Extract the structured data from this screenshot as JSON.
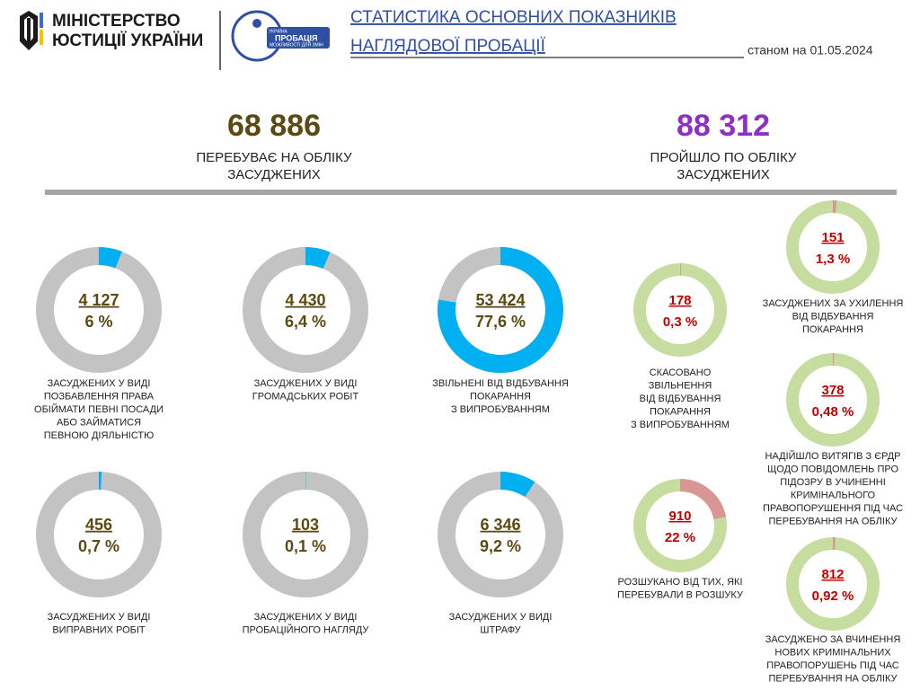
{
  "header": {
    "ministry": [
      "МІНІСТЕРСТВО",
      "ЮСТИЦІЇ УКРАЇНИ"
    ],
    "logo": [
      "УКРАЇНА",
      "ПРОБАЦІЯ",
      "МОЖЛИВОСТІ ДЛЯ ЗМІН"
    ],
    "title": [
      "СТАТИСТИКА ОСНОВНИХ ПОКАЗНИКІВ",
      "НАГЛЯДОВОЇ ПРОБАЦІЇ"
    ],
    "date": "станом на 01.05.2024"
  },
  "summary": [
    {
      "value": "68 886",
      "label": [
        "ПЕРЕБУВАЄ НА ОБЛІКУ",
        "ЗАСУДЖЕНИХ"
      ],
      "color": "#5c4a12"
    },
    {
      "value": "88 312",
      "label": [
        "ПРОЙШЛО ПО ОБЛІКУ",
        "ЗАСУДЖЕНИХ"
      ],
      "color": "#8e2fc8"
    }
  ],
  "donuts": [
    {
      "count": "4 127",
      "percent": 6,
      "percent_label": "6 %",
      "caption": [
        "ЗАСУДЖЕНИХ У ВИДІ",
        "ПОЗБАВЛЕННЯ ПРАВА",
        "ОБІЙМАТИ ПЕВНІ ПОСАДИ",
        "АБО ЗАЙМАТИСЯ",
        "ПЕВНОЮ ДІЯЛЬНІСТЮ"
      ]
    },
    {
      "count": "4 430",
      "percent": 6.4,
      "percent_label": "6,4 %",
      "caption": [
        "ЗАСУДЖЕНИХ У ВИДІ",
        "ГРОМАДСЬКИХ РОБІТ"
      ]
    },
    {
      "count": "53 424",
      "percent": 77.6,
      "percent_label": "77,6 %",
      "caption": [
        "ЗВІЛЬНЕНІ ВІД ВІДБУВАННЯ",
        "ПОКАРАННЯ",
        "З ВИПРОБУВАННЯМ"
      ]
    },
    {
      "count": "456",
      "percent": 0.7,
      "percent_label": "0,7 %",
      "caption": [
        "ЗАСУДЖЕНИХ У ВИДІ",
        "ВИПРАВНИХ РОБІТ"
      ]
    },
    {
      "count": "103",
      "percent": 0.1,
      "percent_label": "0,1 %",
      "caption": [
        "ЗАСУДЖЕНИХ У ВИДІ",
        "ПРОБАЦІЙНОГО НАГЛЯДУ"
      ]
    },
    {
      "count": "6 346",
      "percent": 9.2,
      "percent_label": "9,2 %",
      "caption": [
        "ЗАСУДЖЕНИХ У ВИДІ",
        "ШТРАФУ"
      ]
    }
  ],
  "passed_donuts": [
    {
      "count": "178",
      "percent": 0.3,
      "percent_label": "0,3 %",
      "caption": [
        "СКАСОВАНО",
        "ЗВІЛЬНЕННЯ",
        "ВІД ВІДБУВАННЯ",
        "ПОКАРАННЯ",
        "З ВИПРОБУВАННЯМ"
      ]
    },
    {
      "count": "151",
      "percent": 1.3,
      "percent_label": "1,3 %",
      "caption": [
        "ЗАСУДЖЕНИХ ЗА УХИЛЕННЯ",
        "ВІД ВІДБУВАННЯ",
        "ПОКАРАННЯ"
      ]
    },
    {
      "count": "378",
      "percent": 0.48,
      "percent_label": "0,48 %",
      "caption": [
        "НАДІЙШЛО ВИТЯГІВ З ЄРДР",
        "ЩОДО ПОВІДОМЛЕНЬ ПРО",
        "ПІДОЗРУ В УЧИНЕННІ",
        "КРИМІНАЛЬНОГО",
        "ПРАВОПОРУШЕННЯ ПІД ЧАС",
        "ПЕРЕБУВАННЯ НА ОБЛІКУ"
      ]
    },
    {
      "count": "910",
      "percent": 22,
      "percent_label": "22 %",
      "caption": [
        "РОЗШУКАНО ВІД ТИХ, ЯКІ",
        "ПЕРЕБУВАЛИ В РОЗШУКУ"
      ]
    },
    {
      "count": "812",
      "percent": 0.92,
      "percent_label": "0,92 %",
      "caption": [
        "ЗАСУДЖЕНО ЗА ВЧИНЕННЯ",
        "НОВИХ КРИМІНАЛЬНИХ",
        "ПРАВОПОРУШЕНЬ ПІД ЧАС",
        "ПЕРЕБУВАННЯ НА ОБЛІКУ"
      ]
    }
  ]
}
